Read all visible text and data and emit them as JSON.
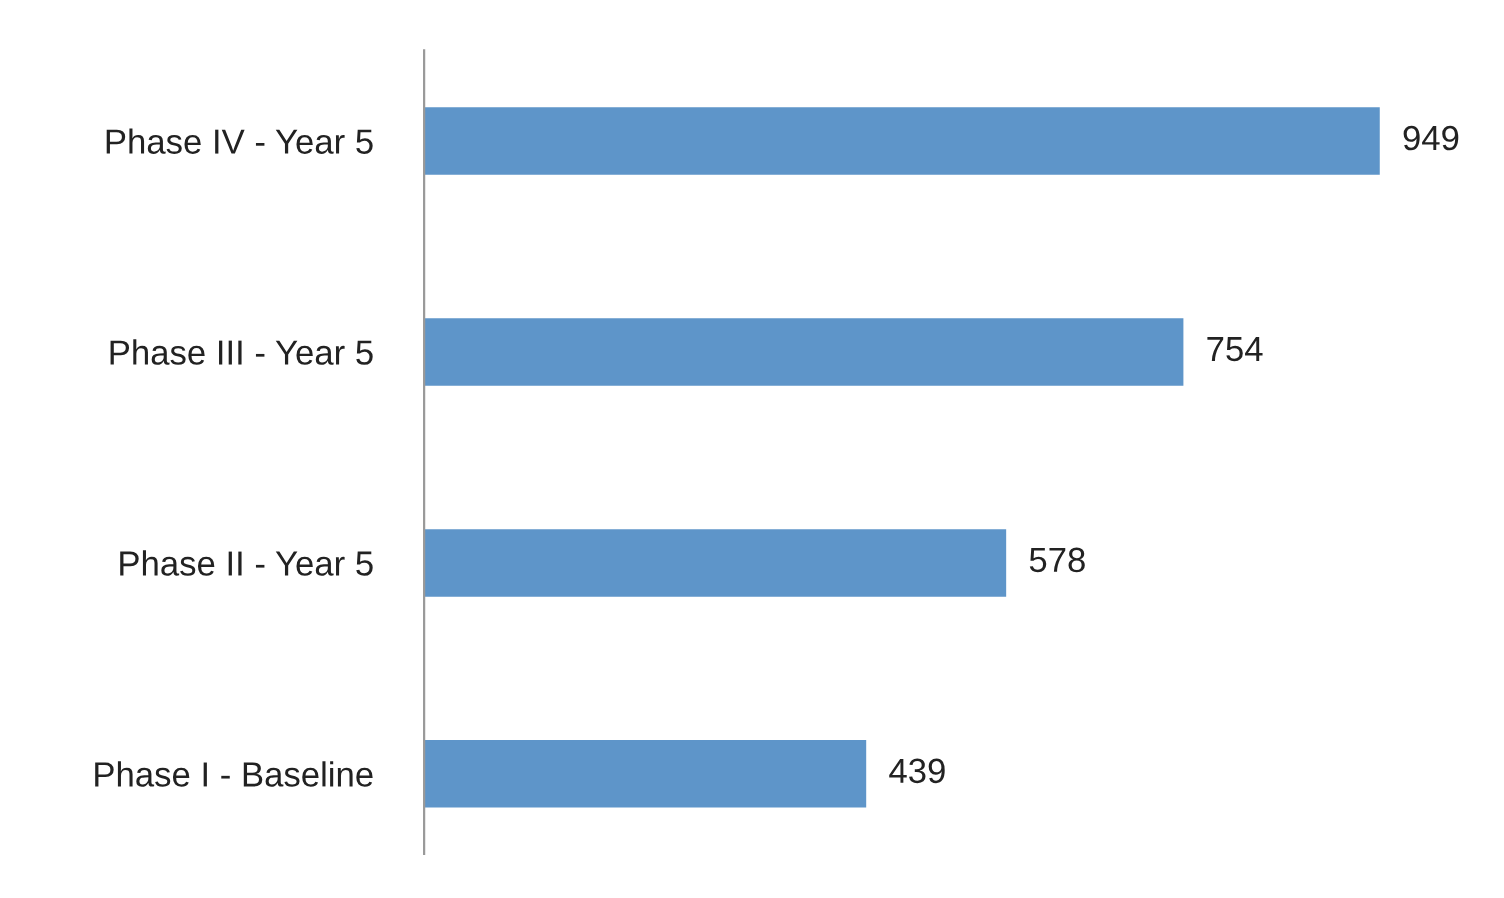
{
  "chart_data": {
    "type": "bar",
    "orientation": "horizontal",
    "categories": [
      "Phase IV - Year 5",
      "Phase III - Year 5",
      "Phase II - Year 5",
      "Phase I - Baseline"
    ],
    "values": [
      949,
      754,
      578,
      439
    ],
    "color": "#5e95c9",
    "data_labels": true,
    "grid": false,
    "legend": false,
    "tick_labels": "y"
  }
}
